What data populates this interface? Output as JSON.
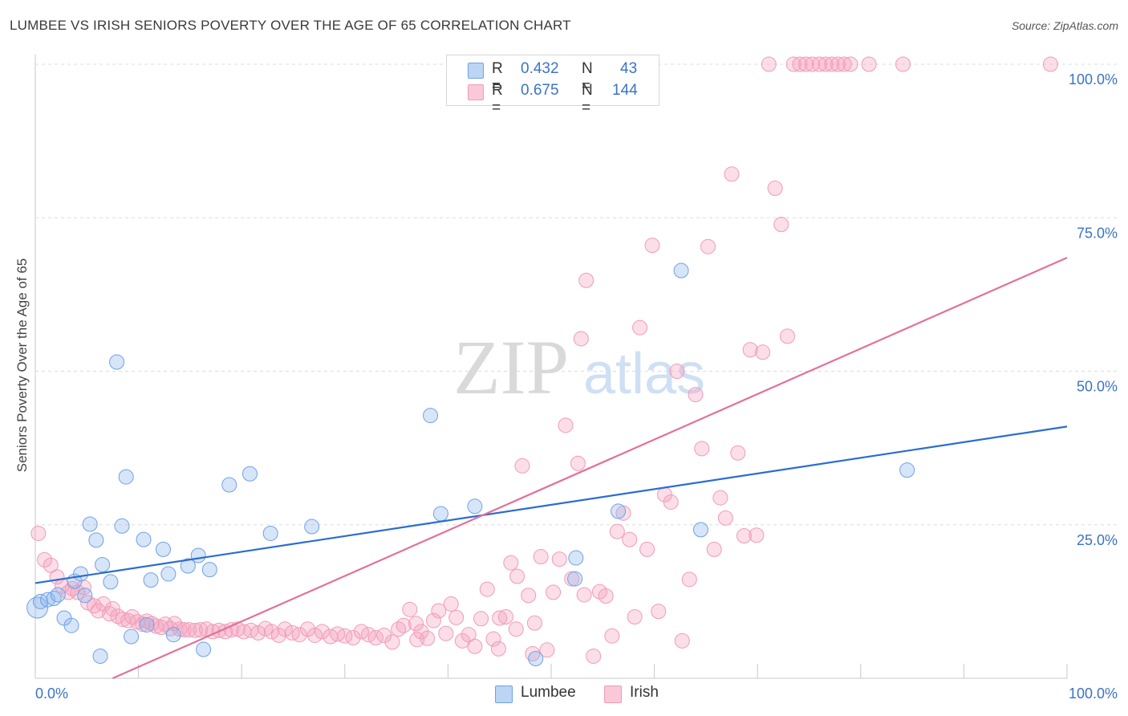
{
  "header": {
    "title": "LUMBEE VS IRISH SENIORS POVERTY OVER THE AGE OF 65 CORRELATION CHART",
    "source": "Source: ZipAtlas.com"
  },
  "watermark": {
    "zip": "ZIP",
    "atlas": "atlas"
  },
  "legend": {
    "rows": [
      {
        "r_label": "R =",
        "r_value": "0.432",
        "n_label": "N =",
        "n_value": "43"
      },
      {
        "r_label": "R =",
        "r_value": "0.675",
        "n_label": "N =",
        "n_value": "144"
      }
    ]
  },
  "bottom_legend": {
    "lumbee": "Lumbee",
    "irish": "Irish"
  },
  "chart_data": {
    "type": "scatter",
    "title": "LUMBEE VS IRISH SENIORS POVERTY OVER THE AGE OF 65 CORRELATION CHART",
    "xlabel": "",
    "ylabel": "Seniors Poverty Over the Age of 65",
    "xlim": [
      0,
      100
    ],
    "ylim": [
      0,
      100
    ],
    "x_tick_labels": [
      "0.0%",
      "100.0%"
    ],
    "y_tick_labels": [
      "25.0%",
      "50.0%",
      "75.0%",
      "100.0%"
    ],
    "y_ticks": [
      25,
      50,
      75,
      100
    ],
    "grid": true,
    "legend_position": "top-center",
    "colors": {
      "lumbee": "#6fa1e8",
      "irish": "#f29bb6",
      "lumbee_line": "#2a6dd0",
      "irish_line": "#e3709a",
      "tick_text": "#3a73c8"
    },
    "series": [
      {
        "name": "Lumbee",
        "stats": {
          "R": 0.432,
          "N": 43
        },
        "trend": {
          "x": [
            0,
            100
          ],
          "y": [
            15.5,
            41.0
          ]
        },
        "points": [
          [
            0.2,
            11.5
          ],
          [
            0.5,
            12.5
          ],
          [
            1.2,
            12.8
          ],
          [
            1.8,
            13.0
          ],
          [
            2.2,
            13.6
          ],
          [
            2.8,
            9.8
          ],
          [
            3.5,
            8.6
          ],
          [
            3.8,
            15.8
          ],
          [
            4.4,
            17.0
          ],
          [
            4.8,
            13.5
          ],
          [
            5.3,
            25.1
          ],
          [
            5.9,
            22.5
          ],
          [
            6.5,
            18.5
          ],
          [
            7.3,
            15.7
          ],
          [
            7.9,
            51.5
          ],
          [
            8.4,
            24.8
          ],
          [
            8.8,
            32.8
          ],
          [
            9.3,
            6.8
          ],
          [
            10.5,
            22.6
          ],
          [
            10.8,
            8.7
          ],
          [
            11.2,
            16.0
          ],
          [
            12.4,
            21.0
          ],
          [
            12.9,
            17.0
          ],
          [
            13.4,
            7.1
          ],
          [
            14.8,
            18.3
          ],
          [
            15.8,
            20.0
          ],
          [
            16.3,
            4.7
          ],
          [
            16.9,
            17.7
          ],
          [
            18.8,
            31.5
          ],
          [
            20.8,
            33.3
          ],
          [
            22.8,
            23.6
          ],
          [
            26.8,
            24.7
          ],
          [
            38.3,
            42.8
          ],
          [
            39.3,
            26.8
          ],
          [
            42.6,
            28.0
          ],
          [
            48.5,
            3.2
          ],
          [
            52.3,
            16.2
          ],
          [
            52.4,
            19.6
          ],
          [
            56.5,
            27.2
          ],
          [
            62.6,
            66.4
          ],
          [
            64.5,
            24.2
          ],
          [
            84.5,
            33.9
          ],
          [
            6.3,
            3.6
          ]
        ]
      },
      {
        "name": "Irish",
        "stats": {
          "R": 0.675,
          "N": 144
        },
        "trend": {
          "x": [
            7.5,
            100
          ],
          "y": [
            0.0,
            68.5
          ]
        },
        "points": [
          [
            0.3,
            23.6
          ],
          [
            0.9,
            19.3
          ],
          [
            1.5,
            18.4
          ],
          [
            2.1,
            16.5
          ],
          [
            2.6,
            15.0
          ],
          [
            3.2,
            14.0
          ],
          [
            3.6,
            14.6
          ],
          [
            4.1,
            14.0
          ],
          [
            4.7,
            14.8
          ],
          [
            5.1,
            12.3
          ],
          [
            5.7,
            11.8
          ],
          [
            6.1,
            11.0
          ],
          [
            6.6,
            12.1
          ],
          [
            7.2,
            10.5
          ],
          [
            7.5,
            11.3
          ],
          [
            8.0,
            10.1
          ],
          [
            8.5,
            9.6
          ],
          [
            9.0,
            9.4
          ],
          [
            9.4,
            10.0
          ],
          [
            9.9,
            9.2
          ],
          [
            10.4,
            8.8
          ],
          [
            10.8,
            9.3
          ],
          [
            11.3,
            8.9
          ],
          [
            11.7,
            8.5
          ],
          [
            12.2,
            8.3
          ],
          [
            12.6,
            8.8
          ],
          [
            13.1,
            8.1
          ],
          [
            13.5,
            8.9
          ],
          [
            14.0,
            8.0
          ],
          [
            14.4,
            7.9
          ],
          [
            14.9,
            7.9
          ],
          [
            15.5,
            7.8
          ],
          [
            16.0,
            7.9
          ],
          [
            16.6,
            8.0
          ],
          [
            17.2,
            7.6
          ],
          [
            17.8,
            7.8
          ],
          [
            18.4,
            7.6
          ],
          [
            19.0,
            7.9
          ],
          [
            19.6,
            8.0
          ],
          [
            20.2,
            7.6
          ],
          [
            20.9,
            7.8
          ],
          [
            21.6,
            7.4
          ],
          [
            22.3,
            8.1
          ],
          [
            22.9,
            7.6
          ],
          [
            23.6,
            7.0
          ],
          [
            24.2,
            8.0
          ],
          [
            24.9,
            7.4
          ],
          [
            25.6,
            7.1
          ],
          [
            26.4,
            8.0
          ],
          [
            27.1,
            7.0
          ],
          [
            27.8,
            7.6
          ],
          [
            28.6,
            6.8
          ],
          [
            29.3,
            7.2
          ],
          [
            30.0,
            6.9
          ],
          [
            30.8,
            6.6
          ],
          [
            31.6,
            7.6
          ],
          [
            32.3,
            7.1
          ],
          [
            33.0,
            6.6
          ],
          [
            33.8,
            7.0
          ],
          [
            34.6,
            5.9
          ],
          [
            35.2,
            8.0
          ],
          [
            35.7,
            8.6
          ],
          [
            36.3,
            11.2
          ],
          [
            36.9,
            8.9
          ],
          [
            37.4,
            7.6
          ],
          [
            38.0,
            6.5
          ],
          [
            38.6,
            9.4
          ],
          [
            39.1,
            11.0
          ],
          [
            39.8,
            7.3
          ],
          [
            40.3,
            12.1
          ],
          [
            40.8,
            9.9
          ],
          [
            41.4,
            6.1
          ],
          [
            42.0,
            7.1
          ],
          [
            42.6,
            5.2
          ],
          [
            43.2,
            9.7
          ],
          [
            43.8,
            14.5
          ],
          [
            44.4,
            6.4
          ],
          [
            45.0,
            9.8
          ],
          [
            45.6,
            10.0
          ],
          [
            46.1,
            18.8
          ],
          [
            46.7,
            16.6
          ],
          [
            47.2,
            34.6
          ],
          [
            47.8,
            13.5
          ],
          [
            48.4,
            9.0
          ],
          [
            49.0,
            19.8
          ],
          [
            49.6,
            4.6
          ],
          [
            50.2,
            14.0
          ],
          [
            50.8,
            19.4
          ],
          [
            51.4,
            41.2
          ],
          [
            52.0,
            16.2
          ],
          [
            52.6,
            35.0
          ],
          [
            52.9,
            55.3
          ],
          [
            53.4,
            64.8
          ],
          [
            54.1,
            3.6
          ],
          [
            54.7,
            14.1
          ],
          [
            55.3,
            13.4
          ],
          [
            55.9,
            6.9
          ],
          [
            56.4,
            23.9
          ],
          [
            57.0,
            26.9
          ],
          [
            57.6,
            22.6
          ],
          [
            58.1,
            10.0
          ],
          [
            58.6,
            57.1
          ],
          [
            59.3,
            21.0
          ],
          [
            59.8,
            70.5
          ],
          [
            60.4,
            10.9
          ],
          [
            61.0,
            29.9
          ],
          [
            61.6,
            28.7
          ],
          [
            62.2,
            50.0
          ],
          [
            62.7,
            6.1
          ],
          [
            63.4,
            16.1
          ],
          [
            64.0,
            46.2
          ],
          [
            64.6,
            37.4
          ],
          [
            65.2,
            70.3
          ],
          [
            65.8,
            21.0
          ],
          [
            66.4,
            29.4
          ],
          [
            66.9,
            26.1
          ],
          [
            67.5,
            82.1
          ],
          [
            68.1,
            36.7
          ],
          [
            68.7,
            23.2
          ],
          [
            69.3,
            53.5
          ],
          [
            69.9,
            23.3
          ],
          [
            70.5,
            53.1
          ],
          [
            71.1,
            100.0
          ],
          [
            71.7,
            79.8
          ],
          [
            72.3,
            73.9
          ],
          [
            72.9,
            55.7
          ],
          [
            73.5,
            100.0
          ],
          [
            74.1,
            100.0
          ],
          [
            74.7,
            100.0
          ],
          [
            75.3,
            100.0
          ],
          [
            76.0,
            100.0
          ],
          [
            76.6,
            100.0
          ],
          [
            77.2,
            100.0
          ],
          [
            77.8,
            100.0
          ],
          [
            78.4,
            100.0
          ],
          [
            79.0,
            100.0
          ],
          [
            80.8,
            100.0
          ],
          [
            84.1,
            100.0
          ],
          [
            98.4,
            100.0
          ],
          [
            37.0,
            6.3
          ],
          [
            44.9,
            4.8
          ],
          [
            46.6,
            8.0
          ],
          [
            48.2,
            4.0
          ],
          [
            53.2,
            13.6
          ]
        ]
      }
    ]
  }
}
